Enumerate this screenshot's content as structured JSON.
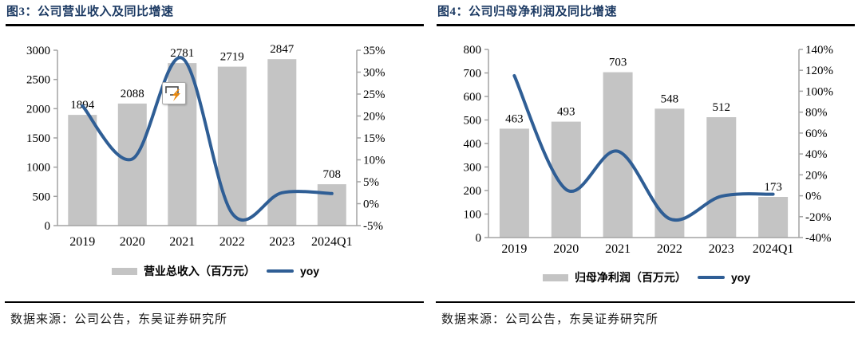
{
  "theme": {
    "title_color": "#1c3a63",
    "rule_color": "#000000",
    "bar_color": "#c4c4c4",
    "line_color": "#2f5e95",
    "axis_color": "#a3a3a3"
  },
  "artifacts": {
    "paste_options_icon": {
      "location": "over figure 3 near 2021 bar",
      "box_color": "#ffffff",
      "border_color": "#ababab",
      "bolt_color": "#e8880f"
    }
  },
  "chart_data": [
    {
      "type": "bar+line",
      "title": "图3：公司营业收入及同比增速",
      "categories": [
        "2019",
        "2020",
        "2021",
        "2022",
        "2023",
        "2024Q1"
      ],
      "series": [
        {
          "name": "营业总收入（百万元）",
          "kind": "bar",
          "axis": "left",
          "color": "#c4c4c4",
          "values": [
            1894,
            2088,
            2781,
            2719,
            2847,
            708
          ],
          "value_labels": [
            "1894",
            "2088",
            "2781",
            "2719",
            "2847",
            "708"
          ]
        },
        {
          "name": "yoy",
          "kind": "line",
          "axis": "right",
          "color": "#2f5e95",
          "values": [
            22.3,
            10.2,
            33.2,
            -2.2,
            2.5,
            2.3
          ]
        }
      ],
      "left_axis": {
        "min": 0,
        "max": 3000,
        "step": 500,
        "tick_labels": [
          "3000",
          "2500",
          "2000",
          "1500",
          "1000",
          "500",
          "0"
        ]
      },
      "right_axis": {
        "min": -5,
        "max": 35,
        "step": 5,
        "tick_labels": [
          "35%",
          "30%",
          "25%",
          "20%",
          "15%",
          "10%",
          "5%",
          "0%",
          "-5%"
        ]
      },
      "legend_position": "bottom",
      "grid": "off",
      "source": "数据来源：公司公告，东吴证券研究所"
    },
    {
      "type": "bar+line",
      "title": "图4：公司归母净利润及同比增速",
      "categories": [
        "2019",
        "2020",
        "2021",
        "2022",
        "2023",
        "2024Q1"
      ],
      "series": [
        {
          "name": "归母净利润（百万元）",
          "kind": "bar",
          "axis": "left",
          "color": "#c4c4c4",
          "values": [
            463,
            493,
            703,
            548,
            512,
            173
          ],
          "value_labels": [
            "463",
            "493",
            "703",
            "548",
            "512",
            "173"
          ]
        },
        {
          "name": "yoy",
          "kind": "line",
          "axis": "right",
          "color": "#2f5e95",
          "values": [
            114.8,
            6.0,
            42.6,
            -22.0,
            -0.5,
            1.5
          ]
        }
      ],
      "left_axis": {
        "min": 0,
        "max": 800,
        "step": 100,
        "tick_labels": [
          "800",
          "700",
          "600",
          "500",
          "400",
          "300",
          "200",
          "100",
          "0"
        ]
      },
      "right_axis": {
        "min": -40,
        "max": 140,
        "step": 20,
        "tick_labels": [
          "140%",
          "120%",
          "100%",
          "80%",
          "60%",
          "40%",
          "20%",
          "0%",
          "-20%",
          "-40%"
        ]
      },
      "legend_position": "bottom",
      "grid": "off",
      "source": "数据来源：公司公告，东吴证券研究所"
    }
  ]
}
